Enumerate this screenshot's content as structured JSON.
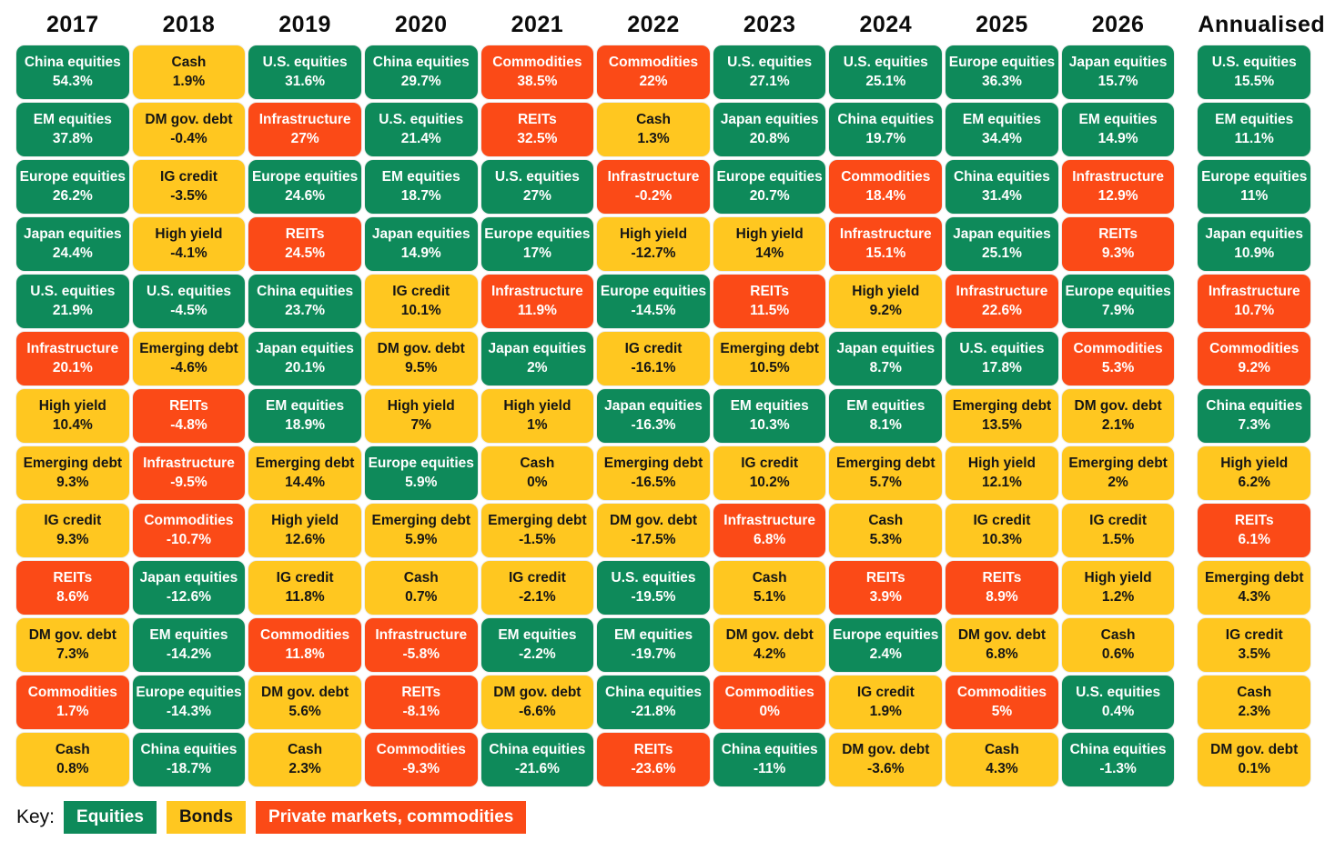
{
  "key": {
    "label": "Key:",
    "items": [
      {
        "label": "Equities",
        "category": "equities"
      },
      {
        "label": "Bonds",
        "category": "bonds"
      },
      {
        "label": "Private markets, commodities",
        "category": "private"
      }
    ]
  },
  "colors": {
    "equities": "#0E8A5A",
    "bonds": "#FFC720",
    "private": "#FB4A17",
    "text_on_dark": "#FFFFFF",
    "text_on_light": "#151515"
  },
  "asset_categories": {
    "China equities": "equities",
    "EM equities": "equities",
    "Europe equities": "equities",
    "Japan equities": "equities",
    "U.S. equities": "equities",
    "Cash": "bonds",
    "DM gov. debt": "bonds",
    "IG credit": "bonds",
    "High yield": "bonds",
    "Emerging debt": "bonds",
    "Infrastructure": "private",
    "REITs": "private",
    "Commodities": "private"
  },
  "chart_data": {
    "type": "table",
    "title": "Asset class returns by year (quilt chart)",
    "columns": [
      {
        "label": "2017",
        "cells": [
          {
            "asset": "China equities",
            "value": "54.3%"
          },
          {
            "asset": "EM equities",
            "value": "37.8%"
          },
          {
            "asset": "Europe equities",
            "value": "26.2%"
          },
          {
            "asset": "Japan equities",
            "value": "24.4%"
          },
          {
            "asset": "U.S. equities",
            "value": "21.9%"
          },
          {
            "asset": "Infrastructure",
            "value": "20.1%"
          },
          {
            "asset": "High yield",
            "value": "10.4%"
          },
          {
            "asset": "Emerging debt",
            "value": "9.3%"
          },
          {
            "asset": "IG credit",
            "value": "9.3%"
          },
          {
            "asset": "REITs",
            "value": "8.6%"
          },
          {
            "asset": "DM gov. debt",
            "value": "7.3%"
          },
          {
            "asset": "Commodities",
            "value": "1.7%"
          },
          {
            "asset": "Cash",
            "value": "0.8%"
          }
        ]
      },
      {
        "label": "2018",
        "cells": [
          {
            "asset": "Cash",
            "value": "1.9%"
          },
          {
            "asset": "DM gov. debt",
            "value": "-0.4%"
          },
          {
            "asset": "IG credit",
            "value": "-3.5%"
          },
          {
            "asset": "High yield",
            "value": "-4.1%"
          },
          {
            "asset": "U.S. equities",
            "value": "-4.5%"
          },
          {
            "asset": "Emerging debt",
            "value": "-4.6%"
          },
          {
            "asset": "REITs",
            "value": "-4.8%"
          },
          {
            "asset": "Infrastructure",
            "value": "-9.5%"
          },
          {
            "asset": "Commodities",
            "value": "-10.7%"
          },
          {
            "asset": "Japan equities",
            "value": "-12.6%"
          },
          {
            "asset": "EM equities",
            "value": "-14.2%"
          },
          {
            "asset": "Europe equities",
            "value": "-14.3%"
          },
          {
            "asset": "China equities",
            "value": "-18.7%"
          }
        ]
      },
      {
        "label": "2019",
        "cells": [
          {
            "asset": "U.S. equities",
            "value": "31.6%"
          },
          {
            "asset": "Infrastructure",
            "value": "27%"
          },
          {
            "asset": "Europe equities",
            "value": "24.6%"
          },
          {
            "asset": "REITs",
            "value": "24.5%"
          },
          {
            "asset": "China equities",
            "value": "23.7%"
          },
          {
            "asset": "Japan equities",
            "value": "20.1%"
          },
          {
            "asset": "EM equities",
            "value": "18.9%"
          },
          {
            "asset": "Emerging debt",
            "value": "14.4%"
          },
          {
            "asset": "High yield",
            "value": "12.6%"
          },
          {
            "asset": "IG credit",
            "value": "11.8%"
          },
          {
            "asset": "Commodities",
            "value": "11.8%"
          },
          {
            "asset": "DM gov. debt",
            "value": "5.6%"
          },
          {
            "asset": "Cash",
            "value": "2.3%"
          }
        ]
      },
      {
        "label": "2020",
        "cells": [
          {
            "asset": "China equities",
            "value": "29.7%"
          },
          {
            "asset": "U.S. equities",
            "value": "21.4%"
          },
          {
            "asset": "EM equities",
            "value": "18.7%"
          },
          {
            "asset": "Japan equities",
            "value": "14.9%"
          },
          {
            "asset": "IG credit",
            "value": "10.1%"
          },
          {
            "asset": "DM gov. debt",
            "value": "9.5%"
          },
          {
            "asset": "High yield",
            "value": "7%"
          },
          {
            "asset": "Europe equities",
            "value": "5.9%"
          },
          {
            "asset": "Emerging debt",
            "value": "5.9%"
          },
          {
            "asset": "Cash",
            "value": "0.7%"
          },
          {
            "asset": "Infrastructure",
            "value": "-5.8%"
          },
          {
            "asset": "REITs",
            "value": "-8.1%"
          },
          {
            "asset": "Commodities",
            "value": "-9.3%"
          }
        ]
      },
      {
        "label": "2021",
        "cells": [
          {
            "asset": "Commodities",
            "value": "38.5%"
          },
          {
            "asset": "REITs",
            "value": "32.5%"
          },
          {
            "asset": "U.S. equities",
            "value": "27%"
          },
          {
            "asset": "Europe equities",
            "value": "17%"
          },
          {
            "asset": "Infrastructure",
            "value": "11.9%"
          },
          {
            "asset": "Japan equities",
            "value": "2%"
          },
          {
            "asset": "High yield",
            "value": "1%"
          },
          {
            "asset": "Cash",
            "value": "0%"
          },
          {
            "asset": "Emerging debt",
            "value": "-1.5%"
          },
          {
            "asset": "IG credit",
            "value": "-2.1%"
          },
          {
            "asset": "EM equities",
            "value": "-2.2%"
          },
          {
            "asset": "DM gov. debt",
            "value": "-6.6%"
          },
          {
            "asset": "China equities",
            "value": "-21.6%"
          }
        ]
      },
      {
        "label": "2022",
        "cells": [
          {
            "asset": "Commodities",
            "value": "22%"
          },
          {
            "asset": "Cash",
            "value": "1.3%"
          },
          {
            "asset": "Infrastructure",
            "value": "-0.2%"
          },
          {
            "asset": "High yield",
            "value": "-12.7%"
          },
          {
            "asset": "Europe equities",
            "value": "-14.5%"
          },
          {
            "asset": "IG credit",
            "value": "-16.1%"
          },
          {
            "asset": "Japan equities",
            "value": "-16.3%"
          },
          {
            "asset": "Emerging debt",
            "value": "-16.5%"
          },
          {
            "asset": "DM gov. debt",
            "value": "-17.5%"
          },
          {
            "asset": "U.S. equities",
            "value": "-19.5%"
          },
          {
            "asset": "EM equities",
            "value": "-19.7%"
          },
          {
            "asset": "China equities",
            "value": "-21.8%"
          },
          {
            "asset": "REITs",
            "value": "-23.6%"
          }
        ]
      },
      {
        "label": "2023",
        "cells": [
          {
            "asset": "U.S. equities",
            "value": "27.1%"
          },
          {
            "asset": "Japan equities",
            "value": "20.8%"
          },
          {
            "asset": "Europe equities",
            "value": "20.7%"
          },
          {
            "asset": "High yield",
            "value": "14%"
          },
          {
            "asset": "REITs",
            "value": "11.5%"
          },
          {
            "asset": "Emerging debt",
            "value": "10.5%"
          },
          {
            "asset": "EM equities",
            "value": "10.3%"
          },
          {
            "asset": "IG credit",
            "value": "10.2%"
          },
          {
            "asset": "Infrastructure",
            "value": "6.8%"
          },
          {
            "asset": "Cash",
            "value": "5.1%"
          },
          {
            "asset": "DM gov. debt",
            "value": "4.2%"
          },
          {
            "asset": "Commodities",
            "value": "0%"
          },
          {
            "asset": "China equities",
            "value": "-11%"
          }
        ]
      },
      {
        "label": "2024",
        "cells": [
          {
            "asset": "U.S. equities",
            "value": "25.1%"
          },
          {
            "asset": "China equities",
            "value": "19.7%"
          },
          {
            "asset": "Commodities",
            "value": "18.4%"
          },
          {
            "asset": "Infrastructure",
            "value": "15.1%"
          },
          {
            "asset": "High yield",
            "value": "9.2%"
          },
          {
            "asset": "Japan equities",
            "value": "8.7%"
          },
          {
            "asset": "EM equities",
            "value": "8.1%"
          },
          {
            "asset": "Emerging debt",
            "value": "5.7%"
          },
          {
            "asset": "Cash",
            "value": "5.3%"
          },
          {
            "asset": "REITs",
            "value": "3.9%"
          },
          {
            "asset": "Europe equities",
            "value": "2.4%"
          },
          {
            "asset": "IG credit",
            "value": "1.9%"
          },
          {
            "asset": "DM gov. debt",
            "value": "-3.6%"
          }
        ]
      },
      {
        "label": "2025",
        "cells": [
          {
            "asset": "Europe equities",
            "value": "36.3%"
          },
          {
            "asset": "EM equities",
            "value": "34.4%"
          },
          {
            "asset": "China equities",
            "value": "31.4%"
          },
          {
            "asset": "Japan equities",
            "value": "25.1%"
          },
          {
            "asset": "Infrastructure",
            "value": "22.6%"
          },
          {
            "asset": "U.S. equities",
            "value": "17.8%"
          },
          {
            "asset": "Emerging debt",
            "value": "13.5%"
          },
          {
            "asset": "High yield",
            "value": "12.1%"
          },
          {
            "asset": "IG credit",
            "value": "10.3%"
          },
          {
            "asset": "REITs",
            "value": "8.9%"
          },
          {
            "asset": "DM gov. debt",
            "value": "6.8%"
          },
          {
            "asset": "Commodities",
            "value": "5%"
          },
          {
            "asset": "Cash",
            "value": "4.3%"
          }
        ]
      },
      {
        "label": "2026",
        "cells": [
          {
            "asset": "Japan equities",
            "value": "15.7%"
          },
          {
            "asset": "EM equities",
            "value": "14.9%"
          },
          {
            "asset": "Infrastructure",
            "value": "12.9%"
          },
          {
            "asset": "REITs",
            "value": "9.3%"
          },
          {
            "asset": "Europe equities",
            "value": "7.9%"
          },
          {
            "asset": "Commodities",
            "value": "5.3%"
          },
          {
            "asset": "DM gov. debt",
            "value": "2.1%"
          },
          {
            "asset": "Emerging debt",
            "value": "2%"
          },
          {
            "asset": "IG credit",
            "value": "1.5%"
          },
          {
            "asset": "High yield",
            "value": "1.2%"
          },
          {
            "asset": "Cash",
            "value": "0.6%"
          },
          {
            "asset": "U.S. equities",
            "value": "0.4%"
          },
          {
            "asset": "China equities",
            "value": "-1.3%"
          }
        ]
      },
      {
        "label": "Annualised",
        "cells": [
          {
            "asset": "U.S. equities",
            "value": "15.5%"
          },
          {
            "asset": "EM equities",
            "value": "11.1%"
          },
          {
            "asset": "Europe equities",
            "value": "11%"
          },
          {
            "asset": "Japan equities",
            "value": "10.9%"
          },
          {
            "asset": "Infrastructure",
            "value": "10.7%"
          },
          {
            "asset": "Commodities",
            "value": "9.2%"
          },
          {
            "asset": "China equities",
            "value": "7.3%"
          },
          {
            "asset": "High yield",
            "value": "6.2%"
          },
          {
            "asset": "REITs",
            "value": "6.1%"
          },
          {
            "asset": "Emerging debt",
            "value": "4.3%"
          },
          {
            "asset": "IG credit",
            "value": "3.5%"
          },
          {
            "asset": "Cash",
            "value": "2.3%"
          },
          {
            "asset": "DM gov. debt",
            "value": "0.1%"
          }
        ]
      }
    ]
  }
}
